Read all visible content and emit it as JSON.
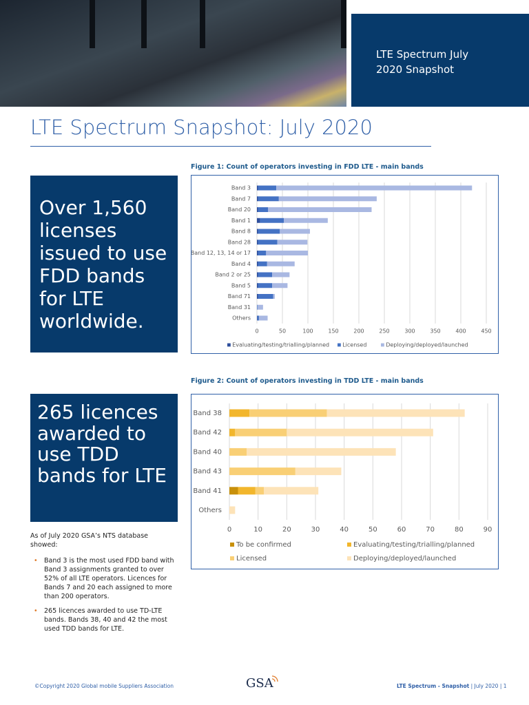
{
  "header": {
    "label": "LTE Spectrum July 2020 Snapshot"
  },
  "title": "LTE Spectrum Snapshot: July 2020",
  "callouts": [
    "Over 1,560 licenses issued to use FDD bands for LTE worldwide.",
    "265 licences awarded to use TDD bands for LTE"
  ],
  "intro": "As of July 2020 GSA’s NTS database showed:",
  "bullets": [
    "Band 3 is the most used FDD band with Band 3 assignments granted to over 52% of all LTE operators. Licences for Bands 7 and 20 each assigned to more than 200 operators.",
    "265 licences awarded to use TD-LTE bands. Bands 38, 40 and 42 the most used TDD bands for LTE."
  ],
  "footer": {
    "copyright": "©Copyright 2020 Global mobile Suppliers Association",
    "logo": "GSA",
    "doc_name": "LTE Spectrum - Snapshot",
    "page_info": "| July 2020 | 1"
  },
  "chart_data": [
    {
      "type": "bar",
      "orientation": "horizontal",
      "stacked": true,
      "grid": true,
      "title": "Figure 1: Count of operators investing in FDD LTE - main bands",
      "categories": [
        "Band 3",
        "Band 7",
        "Band 20",
        "Band 1",
        "Band 8",
        "Band 28",
        "Band 12, 13, 14 or 17",
        "Band 4",
        "Band 2 or 25",
        "Band 5",
        "Band 71",
        "Band 31",
        "Others"
      ],
      "series": [
        {
          "name": "Evaluating/testing/trialling/planned",
          "color": "#2e4e9c",
          "values": [
            2,
            2,
            2,
            6,
            2,
            2,
            2,
            2,
            2,
            2,
            2,
            0,
            1
          ]
        },
        {
          "name": "Licensed",
          "color": "#4472c4",
          "values": [
            36,
            41,
            20,
            47,
            43,
            38,
            16,
            18,
            28,
            28,
            30,
            1,
            3
          ]
        },
        {
          "name": "Deploying/deployed/launched",
          "color": "#a9b8e2",
          "values": [
            384,
            192,
            203,
            86,
            59,
            59,
            82,
            54,
            34,
            30,
            3,
            11,
            17
          ]
        }
      ],
      "xlim": [
        0,
        450
      ],
      "xticks": [
        0,
        50,
        100,
        150,
        200,
        250,
        300,
        350,
        400,
        450
      ]
    },
    {
      "type": "bar",
      "orientation": "horizontal",
      "stacked": true,
      "grid": true,
      "title": "Figure 2: Count of operators investing in TDD LTE - main bands",
      "categories": [
        "Band 38",
        "Band 42",
        "Band 40",
        "Band 43",
        "Band 41",
        "Others"
      ],
      "series": [
        {
          "name": "To be confirmed",
          "color": "#c8900a",
          "values": [
            0,
            0,
            0,
            0,
            3,
            0
          ]
        },
        {
          "name": "Evaluating/testing/trialling/planned",
          "color": "#f2b62c",
          "values": [
            7,
            2,
            0,
            0,
            6,
            0
          ]
        },
        {
          "name": "Licensed",
          "color": "#f9cf75",
          "values": [
            27,
            18,
            6,
            23,
            3,
            0
          ]
        },
        {
          "name": "Deploying/deployed/launched",
          "color": "#fde3b8",
          "values": [
            48,
            51,
            52,
            16,
            19,
            2
          ]
        }
      ],
      "xlim": [
        0,
        90
      ],
      "xticks": [
        0,
        10,
        20,
        30,
        40,
        50,
        60,
        70,
        80,
        90
      ]
    }
  ]
}
